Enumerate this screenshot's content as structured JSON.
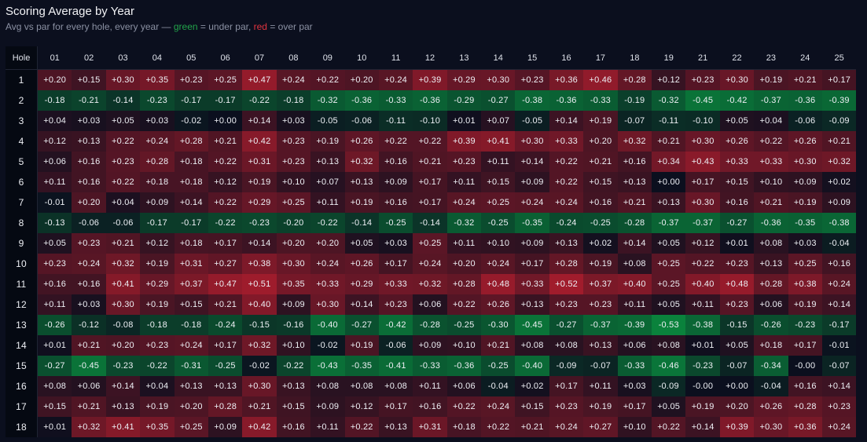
{
  "header": {
    "title": "Scoring Average by Year",
    "subtitle_prefix": "Avg vs par for every hole, every year — ",
    "subtitle_green": "green",
    "subtitle_mid": " = under par, ",
    "subtitle_red": "red",
    "subtitle_suffix": " = over par"
  },
  "colors": {
    "under_par": "#0b7a3a",
    "over_par": "#a01c2c",
    "neutral": "#0b0f1e",
    "background": "#0b0f1e"
  },
  "chart_data": {
    "type": "heatmap",
    "title": "Scoring Average by Year",
    "subtitle": "Avg vs par for every hole, every year — green = under par, red = over par",
    "row_label": "Hole",
    "columns": [
      "01",
      "02",
      "03",
      "04",
      "05",
      "06",
      "07",
      "08",
      "09",
      "10",
      "11",
      "12",
      "13",
      "14",
      "15",
      "16",
      "17",
      "18",
      "19",
      "21",
      "22",
      "23",
      "24",
      "25"
    ],
    "rows": [
      "1",
      "2",
      "3",
      "4",
      "5",
      "6",
      "7",
      "8",
      "9",
      "10",
      "11",
      "12",
      "13",
      "14",
      "15",
      "16",
      "17",
      "18"
    ],
    "values": [
      [
        "+0.20",
        "+0.15",
        "+0.30",
        "+0.35",
        "+0.23",
        "+0.25",
        "+0.47",
        "+0.24",
        "+0.22",
        "+0.20",
        "+0.24",
        "+0.39",
        "+0.29",
        "+0.30",
        "+0.23",
        "+0.36",
        "+0.46",
        "+0.28",
        "+0.12",
        "+0.23",
        "+0.30",
        "+0.19",
        "+0.21",
        "+0.17"
      ],
      [
        "-0.18",
        "-0.21",
        "-0.14",
        "-0.23",
        "-0.17",
        "-0.17",
        "-0.22",
        "-0.18",
        "-0.32",
        "-0.36",
        "-0.33",
        "-0.36",
        "-0.29",
        "-0.27",
        "-0.38",
        "-0.36",
        "-0.33",
        "-0.19",
        "-0.32",
        "-0.45",
        "-0.42",
        "-0.37",
        "-0.36",
        "-0.39"
      ],
      [
        "+0.04",
        "+0.03",
        "+0.05",
        "+0.03",
        "-0.02",
        "+0.00",
        "+0.14",
        "+0.03",
        "-0.05",
        "-0.06",
        "-0.11",
        "-0.10",
        "+0.01",
        "+0.07",
        "-0.05",
        "+0.14",
        "+0.19",
        "-0.07",
        "-0.11",
        "-0.10",
        "+0.05",
        "+0.04",
        "-0.06",
        "-0.09"
      ],
      [
        "+0.12",
        "+0.13",
        "+0.22",
        "+0.24",
        "+0.28",
        "+0.21",
        "+0.42",
        "+0.23",
        "+0.19",
        "+0.26",
        "+0.22",
        "+0.22",
        "+0.39",
        "+0.41",
        "+0.30",
        "+0.33",
        "+0.20",
        "+0.32",
        "+0.21",
        "+0.30",
        "+0.26",
        "+0.22",
        "+0.26",
        "+0.21"
      ],
      [
        "+0.06",
        "+0.16",
        "+0.23",
        "+0.28",
        "+0.18",
        "+0.22",
        "+0.31",
        "+0.23",
        "+0.13",
        "+0.32",
        "+0.16",
        "+0.21",
        "+0.23",
        "+0.11",
        "+0.14",
        "+0.22",
        "+0.21",
        "+0.16",
        "+0.34",
        "+0.43",
        "+0.33",
        "+0.33",
        "+0.30",
        "+0.32"
      ],
      [
        "+0.11",
        "+0.16",
        "+0.22",
        "+0.18",
        "+0.18",
        "+0.12",
        "+0.19",
        "+0.10",
        "+0.07",
        "+0.13",
        "+0.09",
        "+0.17",
        "+0.11",
        "+0.15",
        "+0.09",
        "+0.22",
        "+0.15",
        "+0.13",
        "+0.00",
        "+0.17",
        "+0.15",
        "+0.10",
        "+0.09",
        "+0.02"
      ],
      [
        "-0.01",
        "+0.20",
        "+0.04",
        "+0.09",
        "+0.14",
        "+0.22",
        "+0.29",
        "+0.25",
        "+0.11",
        "+0.19",
        "+0.16",
        "+0.17",
        "+0.24",
        "+0.25",
        "+0.24",
        "+0.24",
        "+0.16",
        "+0.21",
        "+0.13",
        "+0.30",
        "+0.16",
        "+0.21",
        "+0.19",
        "+0.09"
      ],
      [
        "-0.13",
        "-0.06",
        "-0.06",
        "-0.17",
        "-0.17",
        "-0.22",
        "-0.23",
        "-0.20",
        "-0.22",
        "-0.14",
        "-0.25",
        "-0.14",
        "-0.32",
        "-0.25",
        "-0.35",
        "-0.24",
        "-0.25",
        "-0.28",
        "-0.37",
        "-0.37",
        "-0.27",
        "-0.36",
        "-0.35",
        "-0.38"
      ],
      [
        "+0.05",
        "+0.23",
        "+0.21",
        "+0.12",
        "+0.18",
        "+0.17",
        "+0.14",
        "+0.20",
        "+0.20",
        "+0.05",
        "+0.03",
        "+0.25",
        "+0.11",
        "+0.10",
        "+0.09",
        "+0.13",
        "+0.02",
        "+0.14",
        "+0.05",
        "+0.12",
        "+0.01",
        "+0.08",
        "+0.03",
        "-0.04"
      ],
      [
        "+0.23",
        "+0.24",
        "+0.32",
        "+0.19",
        "+0.31",
        "+0.27",
        "+0.38",
        "+0.30",
        "+0.24",
        "+0.26",
        "+0.17",
        "+0.24",
        "+0.20",
        "+0.24",
        "+0.17",
        "+0.28",
        "+0.19",
        "+0.08",
        "+0.25",
        "+0.22",
        "+0.23",
        "+0.13",
        "+0.25",
        "+0.16"
      ],
      [
        "+0.16",
        "+0.16",
        "+0.41",
        "+0.29",
        "+0.37",
        "+0.47",
        "+0.51",
        "+0.35",
        "+0.33",
        "+0.29",
        "+0.33",
        "+0.32",
        "+0.28",
        "+0.48",
        "+0.33",
        "+0.52",
        "+0.37",
        "+0.40",
        "+0.25",
        "+0.40",
        "+0.48",
        "+0.28",
        "+0.38",
        "+0.24"
      ],
      [
        "+0.11",
        "+0.03",
        "+0.30",
        "+0.19",
        "+0.15",
        "+0.21",
        "+0.40",
        "+0.09",
        "+0.30",
        "+0.14",
        "+0.23",
        "+0.06",
        "+0.22",
        "+0.26",
        "+0.13",
        "+0.23",
        "+0.23",
        "+0.11",
        "+0.05",
        "+0.11",
        "+0.23",
        "+0.06",
        "+0.19",
        "+0.14"
      ],
      [
        "-0.26",
        "-0.12",
        "-0.08",
        "-0.18",
        "-0.18",
        "-0.24",
        "-0.15",
        "-0.16",
        "-0.40",
        "-0.27",
        "-0.42",
        "-0.28",
        "-0.25",
        "-0.30",
        "-0.45",
        "-0.27",
        "-0.37",
        "-0.39",
        "-0.53",
        "-0.38",
        "-0.15",
        "-0.26",
        "-0.23",
        "-0.17"
      ],
      [
        "+0.01",
        "+0.21",
        "+0.20",
        "+0.23",
        "+0.24",
        "+0.17",
        "+0.32",
        "+0.10",
        "-0.02",
        "+0.19",
        "-0.06",
        "+0.09",
        "+0.10",
        "+0.21",
        "+0.08",
        "+0.08",
        "+0.13",
        "+0.06",
        "+0.08",
        "+0.01",
        "+0.05",
        "+0.18",
        "+0.17",
        "-0.01"
      ],
      [
        "-0.27",
        "-0.45",
        "-0.23",
        "-0.22",
        "-0.31",
        "-0.25",
        "-0.02",
        "-0.22",
        "-0.43",
        "-0.35",
        "-0.41",
        "-0.33",
        "-0.36",
        "-0.25",
        "-0.40",
        "-0.09",
        "-0.07",
        "-0.33",
        "-0.46",
        "-0.23",
        "-0.07",
        "-0.34",
        "-0.00",
        "-0.07"
      ],
      [
        "+0.08",
        "+0.06",
        "+0.14",
        "+0.04",
        "+0.13",
        "+0.13",
        "+0.30",
        "+0.13",
        "+0.08",
        "+0.08",
        "+0.08",
        "+0.11",
        "+0.06",
        "-0.04",
        "+0.02",
        "+0.17",
        "+0.11",
        "+0.03",
        "-0.09",
        "-0.00",
        "+0.00",
        "-0.04",
        "+0.16",
        "+0.14"
      ],
      [
        "+0.15",
        "+0.21",
        "+0.13",
        "+0.19",
        "+0.20",
        "+0.28",
        "+0.21",
        "+0.15",
        "+0.09",
        "+0.12",
        "+0.17",
        "+0.16",
        "+0.22",
        "+0.24",
        "+0.15",
        "+0.23",
        "+0.19",
        "+0.17",
        "+0.05",
        "+0.19",
        "+0.20",
        "+0.26",
        "+0.28",
        "+0.23"
      ],
      [
        "+0.01",
        "+0.32",
        "+0.41",
        "+0.35",
        "+0.25",
        "+0.09",
        "+0.42",
        "+0.16",
        "+0.11",
        "+0.22",
        "+0.13",
        "+0.31",
        "+0.18",
        "+0.22",
        "+0.21",
        "+0.24",
        "+0.27",
        "+0.10",
        "+0.22",
        "+0.14",
        "+0.39",
        "+0.30",
        "+0.36",
        "+0.24"
      ]
    ]
  }
}
